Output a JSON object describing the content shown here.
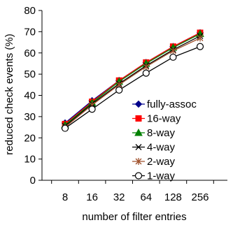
{
  "chart_data": {
    "type": "line",
    "title": "",
    "xlabel": "number of filter entries",
    "ylabel": "reduced check events (%)",
    "categories": [
      "8",
      "16",
      "32",
      "64",
      "128",
      "256"
    ],
    "ylim": [
      0,
      80
    ],
    "yticks": [
      0,
      10,
      20,
      30,
      40,
      50,
      60,
      70,
      80
    ],
    "grid": false,
    "legend_position": "bottom-right",
    "series": [
      {
        "name": "fully-assoc",
        "color": "#00008b",
        "marker": "diamond",
        "values": [
          27.0,
          37.5,
          47.0,
          55.5,
          63.0,
          69.5
        ]
      },
      {
        "name": "16-way",
        "color": "#ff0000",
        "marker": "square",
        "values": [
          26.5,
          37.0,
          47.0,
          55.5,
          63.0,
          69.5
        ]
      },
      {
        "name": "8-way",
        "color": "#008000",
        "marker": "triangle",
        "values": [
          26.0,
          36.5,
          46.5,
          55.0,
          62.5,
          69.0
        ]
      },
      {
        "name": "4-way",
        "color": "#000000",
        "marker": "x",
        "values": [
          25.5,
          36.0,
          45.5,
          54.0,
          61.5,
          68.0
        ]
      },
      {
        "name": "2-way",
        "color": "#a0522d",
        "marker": "star",
        "values": [
          25.0,
          35.5,
          45.0,
          53.5,
          61.0,
          67.0
        ]
      },
      {
        "name": "1-way",
        "color": "#000000",
        "marker": "circle",
        "values": [
          24.5,
          33.5,
          42.5,
          50.5,
          58.0,
          63.0
        ]
      }
    ]
  }
}
